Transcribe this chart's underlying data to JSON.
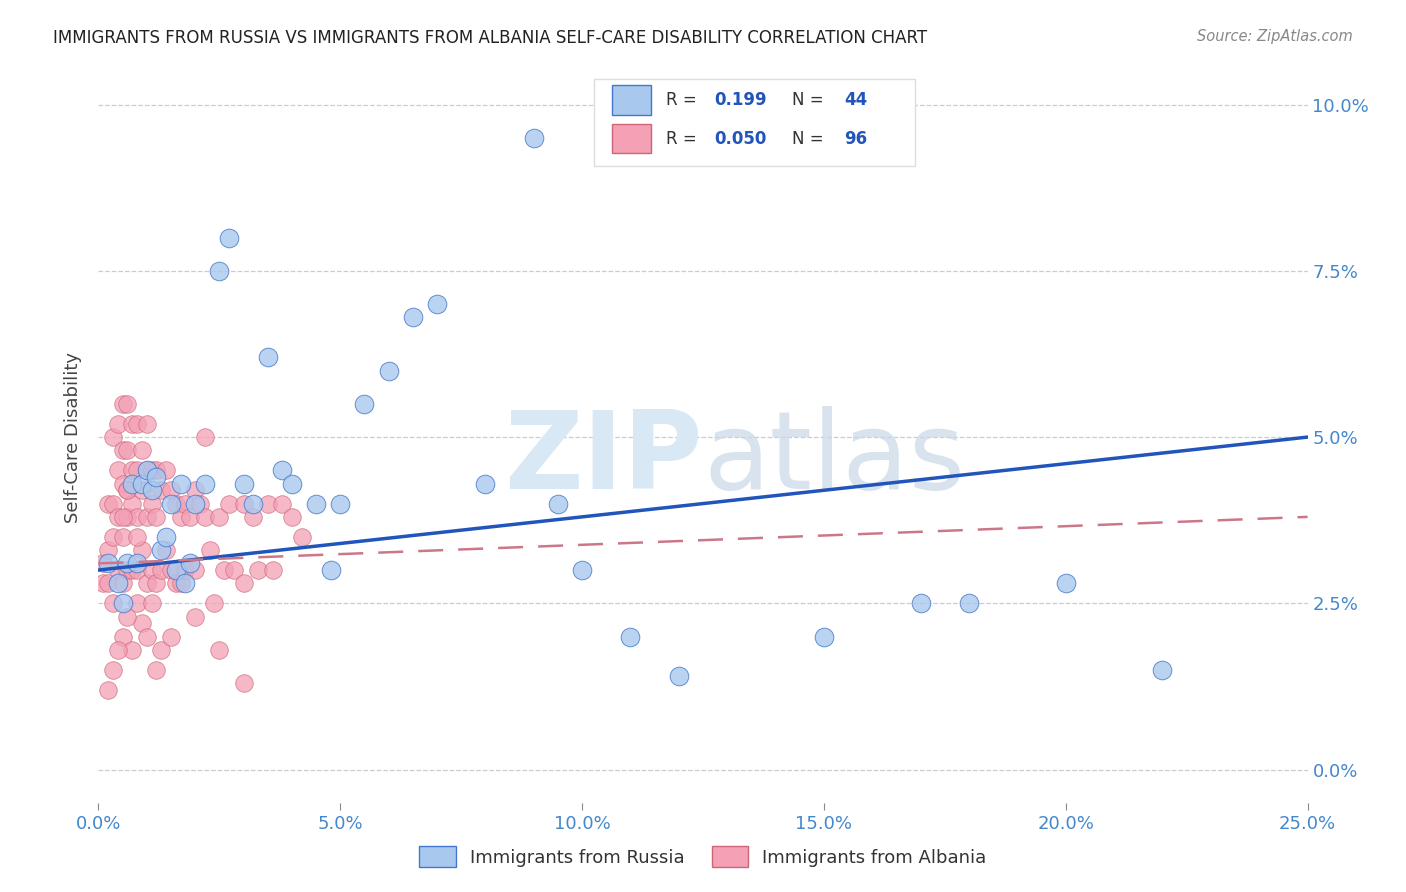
{
  "title": "IMMIGRANTS FROM RUSSIA VS IMMIGRANTS FROM ALBANIA SELF-CARE DISABILITY CORRELATION CHART",
  "source": "Source: ZipAtlas.com",
  "ylabel_label": "Self-Care Disability",
  "legend_label1": "Immigrants from Russia",
  "legend_label2": "Immigrants from Albania",
  "R1": "0.199",
  "N1": "44",
  "R2": "0.050",
  "N2": "96",
  "color_russia_fill": "#A8C8EE",
  "color_russia_edge": "#4477CC",
  "color_albania_fill": "#F4A0B5",
  "color_albania_edge": "#CC6677",
  "color_russia_line": "#2255BB",
  "color_albania_line": "#CC7788",
  "xlim": [
    0.0,
    0.25
  ],
  "ylim": [
    -0.005,
    0.105
  ],
  "xtick_vals": [
    0.0,
    0.05,
    0.1,
    0.15,
    0.2,
    0.25
  ],
  "xtick_labels": [
    "0.0%",
    "5.0%",
    "10.0%",
    "15.0%",
    "20.0%",
    "25.0%"
  ],
  "ytick_vals": [
    0.0,
    0.025,
    0.05,
    0.075,
    0.1
  ],
  "ytick_labels": [
    "0.0%",
    "2.5%",
    "5.0%",
    "7.5%",
    "10.0%"
  ],
  "russia_line_x": [
    0.0,
    0.25
  ],
  "russia_line_y": [
    0.03,
    0.05
  ],
  "albania_line_x": [
    0.0,
    0.25
  ],
  "albania_line_y": [
    0.031,
    0.038
  ],
  "russia_x": [
    0.002,
    0.004,
    0.005,
    0.006,
    0.007,
    0.008,
    0.009,
    0.01,
    0.011,
    0.012,
    0.013,
    0.014,
    0.015,
    0.016,
    0.017,
    0.018,
    0.019,
    0.02,
    0.022,
    0.025,
    0.027,
    0.03,
    0.032,
    0.035,
    0.038,
    0.04,
    0.045,
    0.048,
    0.05,
    0.055,
    0.06,
    0.065,
    0.07,
    0.08,
    0.09,
    0.095,
    0.1,
    0.11,
    0.12,
    0.15,
    0.17,
    0.18,
    0.2,
    0.22
  ],
  "russia_y": [
    0.031,
    0.028,
    0.025,
    0.031,
    0.043,
    0.031,
    0.043,
    0.045,
    0.042,
    0.044,
    0.033,
    0.035,
    0.04,
    0.03,
    0.043,
    0.028,
    0.031,
    0.04,
    0.043,
    0.075,
    0.08,
    0.043,
    0.04,
    0.062,
    0.045,
    0.043,
    0.04,
    0.03,
    0.04,
    0.055,
    0.06,
    0.068,
    0.07,
    0.043,
    0.095,
    0.04,
    0.03,
    0.02,
    0.014,
    0.02,
    0.025,
    0.025,
    0.028,
    0.015
  ],
  "albania_x": [
    0.001,
    0.001,
    0.002,
    0.002,
    0.002,
    0.003,
    0.003,
    0.003,
    0.003,
    0.004,
    0.004,
    0.004,
    0.004,
    0.005,
    0.005,
    0.005,
    0.005,
    0.005,
    0.006,
    0.006,
    0.006,
    0.006,
    0.006,
    0.007,
    0.007,
    0.007,
    0.007,
    0.008,
    0.008,
    0.008,
    0.008,
    0.009,
    0.009,
    0.009,
    0.01,
    0.01,
    0.01,
    0.01,
    0.011,
    0.011,
    0.011,
    0.012,
    0.012,
    0.012,
    0.013,
    0.013,
    0.014,
    0.014,
    0.015,
    0.015,
    0.016,
    0.016,
    0.017,
    0.017,
    0.018,
    0.018,
    0.019,
    0.02,
    0.02,
    0.021,
    0.022,
    0.023,
    0.024,
    0.025,
    0.026,
    0.027,
    0.028,
    0.03,
    0.03,
    0.032,
    0.033,
    0.035,
    0.036,
    0.038,
    0.04,
    0.042,
    0.022,
    0.008,
    0.009,
    0.01,
    0.006,
    0.005,
    0.007,
    0.004,
    0.003,
    0.002,
    0.011,
    0.012,
    0.013,
    0.008,
    0.005,
    0.006,
    0.015,
    0.02,
    0.025,
    0.03
  ],
  "albania_y": [
    0.031,
    0.028,
    0.04,
    0.033,
    0.028,
    0.05,
    0.04,
    0.025,
    0.035,
    0.052,
    0.045,
    0.038,
    0.03,
    0.055,
    0.048,
    0.043,
    0.035,
    0.028,
    0.055,
    0.048,
    0.042,
    0.038,
    0.03,
    0.052,
    0.045,
    0.04,
    0.03,
    0.052,
    0.045,
    0.038,
    0.03,
    0.048,
    0.042,
    0.033,
    0.052,
    0.045,
    0.038,
    0.028,
    0.045,
    0.04,
    0.03,
    0.045,
    0.038,
    0.028,
    0.042,
    0.03,
    0.045,
    0.033,
    0.042,
    0.03,
    0.04,
    0.028,
    0.038,
    0.028,
    0.04,
    0.03,
    0.038,
    0.042,
    0.03,
    0.04,
    0.038,
    0.033,
    0.025,
    0.038,
    0.03,
    0.04,
    0.03,
    0.04,
    0.028,
    0.038,
    0.03,
    0.04,
    0.03,
    0.04,
    0.038,
    0.035,
    0.05,
    0.025,
    0.022,
    0.02,
    0.023,
    0.02,
    0.018,
    0.018,
    0.015,
    0.012,
    0.025,
    0.015,
    0.018,
    0.035,
    0.038,
    0.042,
    0.02,
    0.023,
    0.018,
    0.013
  ],
  "figsize": [
    14.06,
    8.92
  ],
  "dpi": 100
}
